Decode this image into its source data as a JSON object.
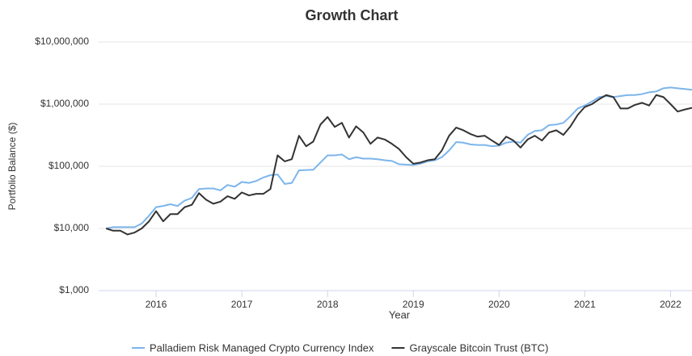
{
  "chart_data": {
    "type": "line",
    "title": "Growth Chart",
    "x_label": "Year",
    "y_label": "Portfolio Balance ($)",
    "log_y": true,
    "grid": true,
    "legend": "bottom",
    "xlim": [
      2015.33,
      2022.25
    ],
    "xticks": [
      2016,
      2017,
      2018,
      2019,
      2020,
      2021,
      2022
    ],
    "ylim": [
      1000,
      10000000
    ],
    "yticks": [
      {
        "value": 1000,
        "label": "$1,000"
      },
      {
        "value": 10000,
        "label": "$10,000"
      },
      {
        "value": 100000,
        "label": "$100,000"
      },
      {
        "value": 1000000,
        "label": "$1,000,000"
      },
      {
        "value": 10000000,
        "label": "$10,000,000"
      }
    ],
    "x": [
      2015.417,
      2015.5,
      2015.583,
      2015.667,
      2015.75,
      2015.833,
      2015.917,
      2016,
      2016.083,
      2016.167,
      2016.25,
      2016.333,
      2016.417,
      2016.5,
      2016.583,
      2016.667,
      2016.75,
      2016.833,
      2016.917,
      2017,
      2017.083,
      2017.167,
      2017.25,
      2017.333,
      2017.417,
      2017.5,
      2017.583,
      2017.667,
      2017.75,
      2017.833,
      2017.917,
      2018,
      2018.083,
      2018.167,
      2018.25,
      2018.333,
      2018.417,
      2018.5,
      2018.583,
      2018.667,
      2018.75,
      2018.833,
      2018.917,
      2019,
      2019.083,
      2019.167,
      2019.25,
      2019.333,
      2019.417,
      2019.5,
      2019.583,
      2019.667,
      2019.75,
      2019.833,
      2019.917,
      2020,
      2020.083,
      2020.167,
      2020.25,
      2020.333,
      2020.417,
      2020.5,
      2020.583,
      2020.667,
      2020.75,
      2020.833,
      2020.917,
      2021,
      2021.083,
      2021.167,
      2021.25,
      2021.333,
      2021.417,
      2021.5,
      2021.583,
      2021.667,
      2021.75,
      2021.833,
      2021.917,
      2022,
      2022.083,
      2022.167,
      2022.25
    ],
    "series": [
      {
        "name": "Palladiem Risk Managed Crypto Currency Index",
        "color": "#7cb5ec",
        "values": [
          10000,
          10500,
          10500,
          10500,
          10500,
          12000,
          16000,
          22000,
          23000,
          24500,
          23000,
          28000,
          31000,
          43000,
          44000,
          44000,
          41000,
          50000,
          47000,
          56000,
          54000,
          58000,
          66000,
          72000,
          74000,
          52000,
          54000,
          86000,
          87000,
          88000,
          115000,
          150000,
          150000,
          155000,
          130000,
          140000,
          133000,
          133000,
          130000,
          125000,
          122000,
          108000,
          106000,
          105000,
          110000,
          120000,
          125000,
          140000,
          180000,
          245000,
          240000,
          225000,
          220000,
          220000,
          210000,
          215000,
          240000,
          250000,
          240000,
          320000,
          370000,
          380000,
          460000,
          470000,
          500000,
          640000,
          850000,
          950000,
          1100000,
          1300000,
          1350000,
          1300000,
          1350000,
          1400000,
          1400000,
          1450000,
          1550000,
          1600000,
          1800000,
          1850000,
          1800000,
          1750000,
          1700000
        ]
      },
      {
        "name": "Grayscale Bitcoin Trust (BTC)",
        "color": "#333333",
        "values": [
          10000,
          9200,
          9200,
          8000,
          8600,
          10000,
          13000,
          19000,
          13000,
          17000,
          17000,
          22000,
          24000,
          37000,
          29000,
          25000,
          27000,
          33000,
          30000,
          38000,
          34000,
          36000,
          36000,
          43000,
          150000,
          120000,
          130000,
          310000,
          210000,
          250000,
          470000,
          620000,
          430000,
          500000,
          290000,
          440000,
          350000,
          230000,
          290000,
          270000,
          230000,
          190000,
          140000,
          110000,
          115000,
          125000,
          130000,
          180000,
          310000,
          420000,
          380000,
          330000,
          300000,
          310000,
          260000,
          220000,
          300000,
          260000,
          200000,
          270000,
          310000,
          260000,
          350000,
          380000,
          320000,
          440000,
          670000,
          900000,
          1000000,
          1200000,
          1400000,
          1300000,
          850000,
          850000,
          970000,
          1050000,
          950000,
          1400000,
          1300000,
          1000000,
          760000,
          820000,
          870000
        ]
      }
    ]
  }
}
